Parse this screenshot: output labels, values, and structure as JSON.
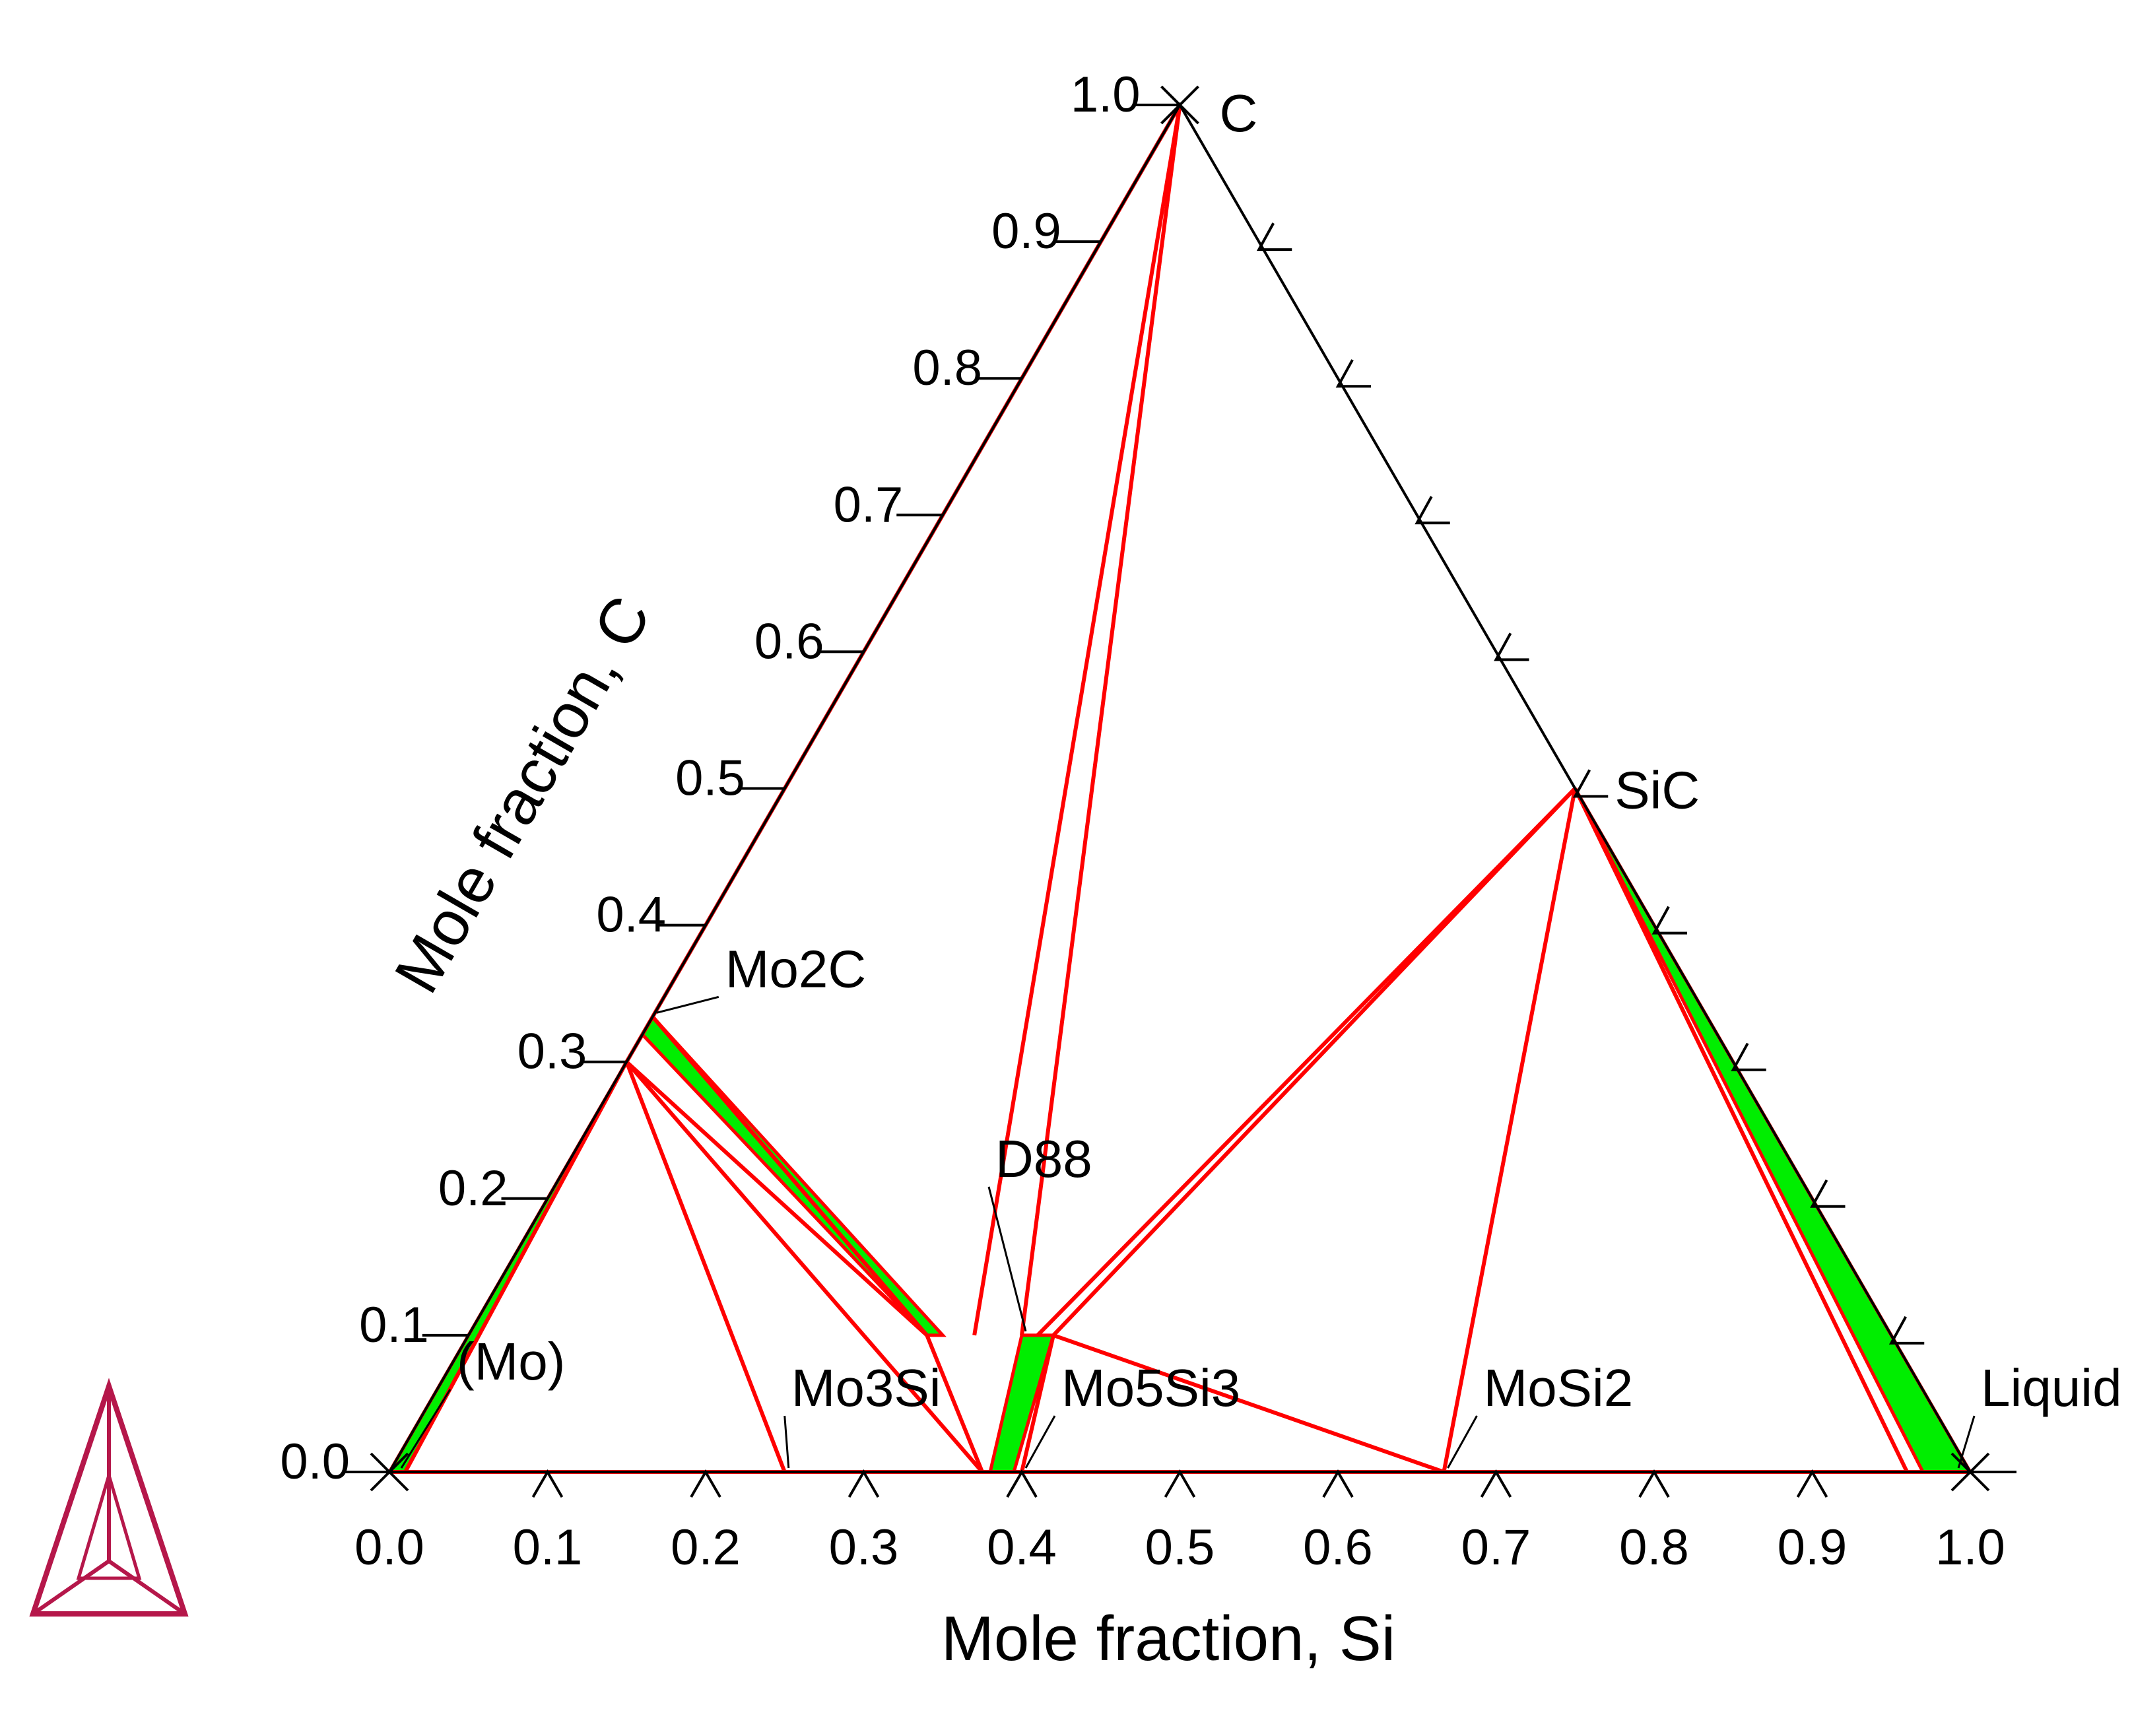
{
  "chart_data": {
    "type": "ternary",
    "xlabel": "Mole fraction, Si",
    "ylabel": "Mole fraction, C",
    "xlim": [
      0,
      1
    ],
    "ylim": [
      0,
      1
    ],
    "x_ticks": [
      "0.0",
      "0.1",
      "0.2",
      "0.3",
      "0.4",
      "0.5",
      "0.6",
      "0.7",
      "0.8",
      "0.9",
      "1.0"
    ],
    "y_ticks": [
      "0.0",
      "0.1",
      "0.2",
      "0.3",
      "0.4",
      "0.5",
      "0.6",
      "0.7",
      "0.8",
      "0.9",
      "1.0"
    ],
    "colors": {
      "frame": "#000000",
      "tie_line": "#ff0000",
      "two_phase": "#00ee00",
      "logo": "#b5174a"
    },
    "phase_labels": [
      {
        "text": "C",
        "xSi": 0.0,
        "xC": 1.0
      },
      {
        "text": "SiC",
        "xSi": 0.5,
        "xC": 0.5
      },
      {
        "text": "Mo2C",
        "xSi": 0.0,
        "xC": 0.333
      },
      {
        "text": "D88",
        "xSi": 0.35,
        "xC": 0.1
      },
      {
        "text": "(Mo)",
        "xSi": 0.005,
        "xC": 0.0
      },
      {
        "text": "Mo3Si",
        "xSi": 0.25,
        "xC": 0.0
      },
      {
        "text": "Mo5Si3",
        "xSi": 0.4,
        "xC": 0.0
      },
      {
        "text": "MoSi2",
        "xSi": 0.667,
        "xC": 0.0
      },
      {
        "text": "Liquid",
        "xSi": 0.99,
        "xC": 0.0
      }
    ],
    "tie_lines": [
      {
        "from": [
          0.0,
          1.0
        ],
        "to": [
          0.32,
          0.1
        ]
      },
      {
        "from": [
          0.0,
          1.0
        ],
        "to": [
          0.35,
          0.1
        ]
      },
      {
        "from": [
          0.0,
          1.0
        ],
        "to": [
          0.0,
          0.333
        ]
      },
      {
        "from": [
          0.5,
          0.5
        ],
        "to": [
          0.37,
          0.1
        ]
      },
      {
        "from": [
          0.5,
          0.5
        ],
        "to": [
          0.36,
          0.1
        ]
      },
      {
        "from": [
          0.5,
          0.5
        ],
        "to": [
          0.667,
          0.0
        ]
      },
      {
        "from": [
          0.5,
          0.5
        ],
        "to": [
          0.96,
          0.0
        ]
      },
      {
        "from": [
          0.0,
          0.333
        ],
        "to": [
          0.29,
          0.1
        ]
      },
      {
        "from": [
          0.0,
          0.3
        ],
        "to": [
          0.25,
          0.0
        ]
      },
      {
        "from": [
          0.0,
          0.3
        ],
        "to": [
          0.375,
          0.0
        ]
      },
      {
        "from": [
          0.0,
          0.3
        ],
        "to": [
          0.29,
          0.1
        ]
      },
      {
        "from": [
          0.0,
          0.3
        ],
        "to": [
          0.0,
          0.333
        ]
      },
      {
        "from": [
          0.0,
          0.3
        ],
        "to": [
          0.01,
          0.0
        ]
      },
      {
        "from": [
          0.37,
          0.1
        ],
        "to": [
          0.667,
          0.0
        ]
      },
      {
        "from": [
          0.29,
          0.1
        ],
        "to": [
          0.375,
          0.0
        ]
      },
      {
        "from": [
          0.37,
          0.1
        ],
        "to": [
          0.4,
          0.0
        ]
      },
      {
        "from": [
          0.0,
          0.0
        ],
        "to": [
          1.0,
          0.0
        ]
      }
    ],
    "two_phase_regions": [
      {
        "polygon": [
          [
            0.0,
            0.0
          ],
          [
            0.01,
            0.0
          ],
          [
            0.0,
            0.3
          ]
        ]
      },
      {
        "polygon": [
          [
            0.0,
            0.333
          ],
          [
            0.0,
            0.32
          ],
          [
            0.29,
            0.1
          ],
          [
            0.3,
            0.1
          ]
        ]
      },
      {
        "polygon": [
          [
            0.35,
            0.1
          ],
          [
            0.37,
            0.1
          ],
          [
            0.395,
            0.0
          ],
          [
            0.38,
            0.0
          ]
        ]
      },
      {
        "polygon": [
          [
            0.5,
            0.5
          ],
          [
            0.97,
            0.0
          ],
          [
            1.0,
            0.0
          ]
        ]
      }
    ]
  }
}
